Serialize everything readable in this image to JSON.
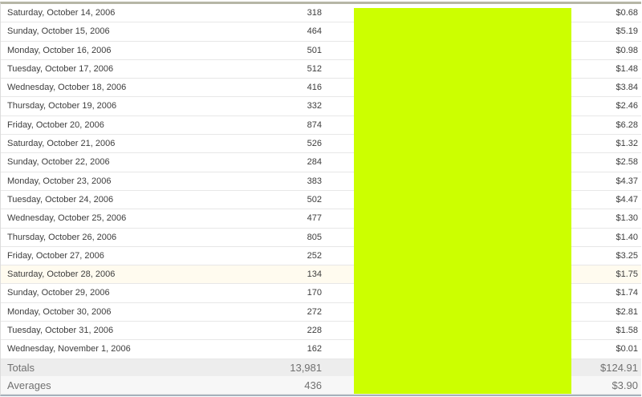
{
  "table": {
    "rows": [
      {
        "date": "Saturday, October 14, 2006",
        "count": "318",
        "amount": "$0.68"
      },
      {
        "date": "Sunday, October 15, 2006",
        "count": "464",
        "amount": "$5.19"
      },
      {
        "date": "Monday, October 16, 2006",
        "count": "501",
        "amount": "$0.98"
      },
      {
        "date": "Tuesday, October 17, 2006",
        "count": "512",
        "amount": "$1.48"
      },
      {
        "date": "Wednesday, October 18, 2006",
        "count": "416",
        "amount": "$3.84"
      },
      {
        "date": "Thursday, October 19, 2006",
        "count": "332",
        "amount": "$2.46"
      },
      {
        "date": "Friday, October 20, 2006",
        "count": "874",
        "amount": "$6.28"
      },
      {
        "date": "Saturday, October 21, 2006",
        "count": "526",
        "amount": "$1.32"
      },
      {
        "date": "Sunday, October 22, 2006",
        "count": "284",
        "amount": "$2.58"
      },
      {
        "date": "Monday, October 23, 2006",
        "count": "383",
        "amount": "$4.37"
      },
      {
        "date": "Tuesday, October 24, 2006",
        "count": "502",
        "amount": "$4.47"
      },
      {
        "date": "Wednesday, October 25, 2006",
        "count": "477",
        "amount": "$1.30"
      },
      {
        "date": "Thursday, October 26, 2006",
        "count": "805",
        "amount": "$1.40"
      },
      {
        "date": "Friday, October 27, 2006",
        "count": "252",
        "amount": "$3.25"
      },
      {
        "date": "Saturday, October 28, 2006",
        "count": "134",
        "amount": "$1.75"
      },
      {
        "date": "Sunday, October 29, 2006",
        "count": "170",
        "amount": "$1.74"
      },
      {
        "date": "Monday, October 30, 2006",
        "count": "272",
        "amount": "$2.81"
      },
      {
        "date": "Tuesday, October 31, 2006",
        "count": "228",
        "amount": "$1.58"
      },
      {
        "date": "Wednesday, November 1, 2006",
        "count": "162",
        "amount": "$0.01"
      }
    ],
    "highlighted_row_index": 14,
    "totals": {
      "label": "Totals",
      "count": "13,981",
      "amount": "$124.91"
    },
    "averages": {
      "label": "Averages",
      "count": "436",
      "amount": "$3.90"
    }
  },
  "overlay": {
    "description": "solid redaction block covering middle columns",
    "color": "#ccff00"
  },
  "colors": {
    "top_border": "#b6b6a6",
    "bottom_border": "#a6b2bc",
    "row_separator": "#e7e7e7",
    "totals_row_bg": "#ededed",
    "averages_row_bg": "#f7f7f7",
    "highlight_row_bg": "#fffbef",
    "data_text": "#3d3d3d",
    "summary_text": "#707070"
  }
}
